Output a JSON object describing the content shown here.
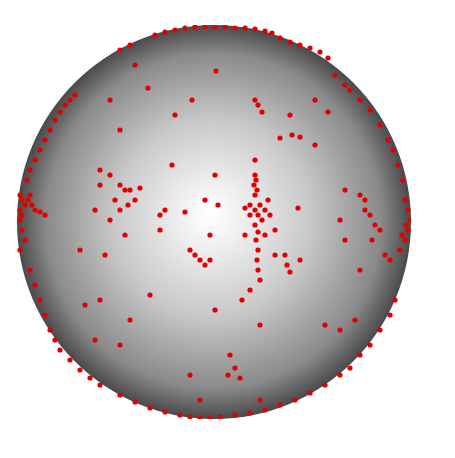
{
  "chart_data": {
    "type": "scatter",
    "color": "#e00000",
    "marker": "circle",
    "grid": false,
    "tick_labels": false,
    "xlim": [
      -197,
      197
    ],
    "ylim": [
      -197,
      197
    ],
    "x": [
      -59,
      -49,
      -39,
      -29,
      -19,
      -9,
      1,
      11,
      21,
      31,
      41,
      51,
      58,
      66,
      76,
      86,
      96,
      106,
      114,
      -84,
      -94,
      -139,
      -144,
      -149,
      -154,
      -159,
      -164,
      -169,
      -174,
      -179,
      -184,
      -187,
      -194,
      -192,
      -189,
      -194,
      -192,
      -186,
      -182,
      -179,
      -174,
      -169,
      -194,
      -192,
      -189,
      -194,
      -184,
      -184,
      -179,
      -174,
      -169,
      -164,
      -159,
      -154,
      -144,
      -134,
      -124,
      -114,
      -94,
      -79,
      -64,
      -49,
      -34,
      -24,
      -14,
      -4,
      6,
      21,
      36,
      51,
      66,
      81,
      96,
      111,
      126,
      136,
      146,
      156,
      166,
      176,
      181,
      186,
      191,
      194,
      196,
      194,
      191,
      189,
      184,
      179,
      174,
      188,
      192,
      166,
      156,
      146,
      131,
      121,
      136,
      41,
      41,
      42,
      40,
      43,
      41,
      36,
      31,
      41,
      46,
      51,
      44,
      48,
      41,
      44,
      42,
      44,
      43,
      44,
      46,
      36,
      28,
      56,
      54,
      36,
      51,
      61,
      41,
      44,
      48,
      66,
      78,
      86,
      76,
      101,
      114,
      71,
      73,
      76,
      61,
      31,
      -114,
      -104,
      -114,
      -94,
      -89,
      -84,
      -74,
      -99,
      -86,
      -79,
      -94,
      -119,
      -104,
      -89,
      -109,
      -54,
      -42,
      -54,
      -64,
      -129,
      -114,
      -19,
      -14,
      -9,
      -24,
      -4,
      -9,
      4,
      -4,
      -66,
      -22,
      2,
      -29,
      -49,
      131,
      146,
      151,
      151,
      156,
      161,
      166,
      158,
      171,
      176,
      126,
      131,
      146,
      141,
      126,
      111,
      84,
      86,
      16,
      21,
      26,
      14,
      1,
      46,
      -24,
      -94,
      -84,
      -14,
      46,
      -119,
      -79,
      -39,
      1,
      -94,
      -134,
      -104,
      101
    ],
    "values": [
      187,
      190,
      192,
      194,
      195,
      195,
      195,
      195,
      194,
      194,
      193,
      191,
      189,
      184,
      180,
      177,
      174,
      170,
      164,
      177,
      172,
      127,
      122,
      117,
      110,
      102,
      92,
      82,
      72,
      62,
      52,
      42,
      27,
      22,
      17,
      12,
      7,
      22,
      17,
      12,
      10,
      7,
      2,
      -8,
      -18,
      -28,
      27,
      -48,
      -63,
      -78,
      -93,
      -108,
      -118,
      -128,
      -138,
      -148,
      -156,
      -163,
      -173,
      -180,
      -186,
      -190,
      -193,
      -195,
      -196,
      -196,
      -195,
      -193,
      -191,
      -188,
      -183,
      -178,
      -171,
      -163,
      -153,
      -146,
      -133,
      -123,
      -108,
      -93,
      -78,
      -28,
      -18,
      -8,
      2,
      12,
      22,
      42,
      57,
      72,
      82,
      -13,
      -3,
      97,
      112,
      122,
      137,
      147,
      132,
      62,
      47,
      42,
      37,
      32,
      27,
      17,
      14,
      12,
      17,
      12,
      7,
      2,
      -3,
      -10,
      -18,
      -28,
      -38,
      -48,
      -58,
      -68,
      -78,
      7,
      22,
      7,
      -13,
      -8,
      122,
      117,
      110,
      84,
      87,
      85,
      107,
      122,
      110,
      -33,
      -43,
      -50,
      -33,
      -13,
      52,
      47,
      37,
      37,
      32,
      32,
      34,
      22,
      17,
      22,
      12,
      12,
      2,
      -13,
      -33,
      7,
      57,
      -8,
      -73,
      -83,
      -78,
      -33,
      -38,
      -43,
      -28,
      -38,
      22,
      17,
      -13,
      134,
      122,
      151,
      10,
      12,
      32,
      27,
      22,
      12,
      7,
      -3,
      -8,
      -18,
      -33,
      -38,
      2,
      -18,
      -48,
      -98,
      -108,
      -103,
      14,
      -38,
      -133,
      -146,
      -156,
      -153,
      -88,
      -103,
      -153,
      -123,
      -98,
      -178,
      -178,
      -118,
      157,
      107,
      47,
      92,
      -28,
      122,
      77
    ]
  }
}
